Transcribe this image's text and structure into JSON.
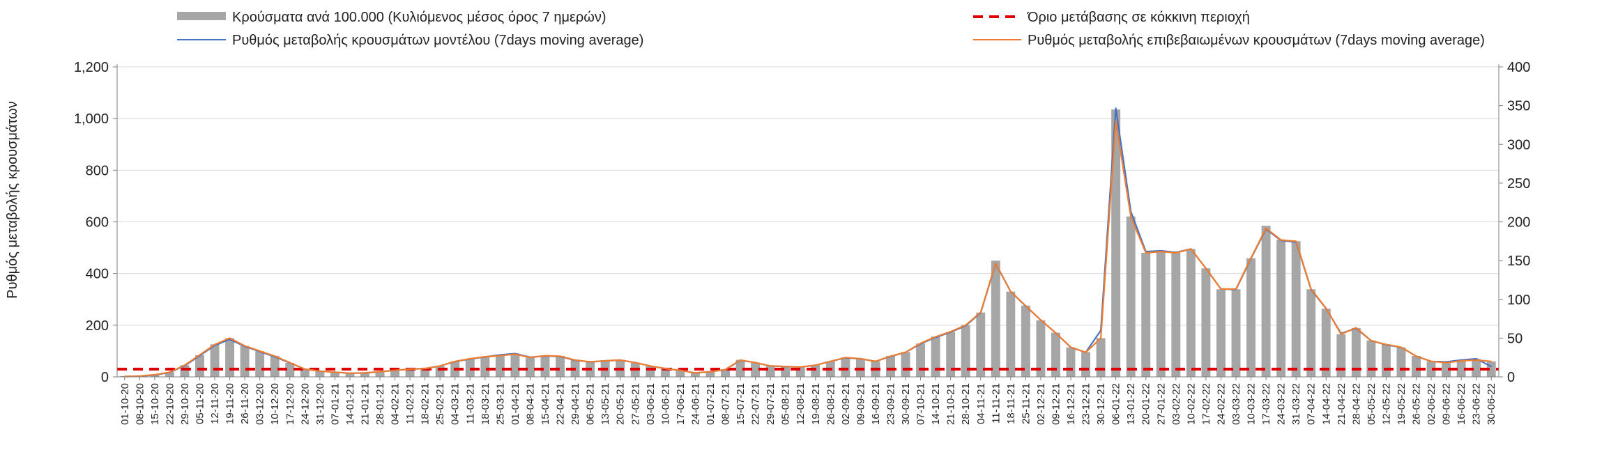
{
  "chart_data": {
    "type": "bar",
    "title": "",
    "ylabel": "Ρυθμός μεταβολής κρουσμάτων",
    "y2label": "",
    "ylim": [
      0,
      1200
    ],
    "y2lim": [
      0,
      400
    ],
    "y_ticks": [
      "0",
      "200",
      "400",
      "600",
      "800",
      "1,000",
      "1,200"
    ],
    "y2_ticks": [
      "0",
      "50",
      "100",
      "150",
      "200",
      "250",
      "300",
      "350",
      "400"
    ],
    "threshold_value": 30,
    "legend": {
      "bars": "Κρούσματα ανά 100.000 (Κυλιόμενος μέσος όρος 7 ημερών)",
      "threshold": "Όριο μετάβασης σε κόκκινη περιοχή",
      "model": "Ρυθμός μεταβολής κρουσμάτων μοντέλου (7days moving average)",
      "confirmed": "Ρυθμός μεταβολής επιβεβαιωμένων κρουσμάτων (7days moving average)"
    },
    "colors": {
      "bars": "#a6a6a6",
      "threshold": "#e00000",
      "model": "#4472c4",
      "confirmed": "#ed7d31",
      "grid": "#d9d9d9",
      "axis": "#7f7f7f"
    },
    "categories": [
      "01-10-20",
      "08-10-20",
      "15-10-20",
      "22-10-20",
      "29-10-20",
      "05-11-20",
      "12-11-20",
      "19-11-20",
      "26-11-20",
      "03-12-20",
      "10-12-20",
      "17-12-20",
      "24-12-20",
      "31-12-20",
      "07-01-21",
      "14-01-21",
      "21-01-21",
      "28-01-21",
      "04-02-21",
      "11-02-21",
      "18-02-21",
      "25-02-21",
      "04-03-21",
      "11-03-21",
      "18-03-21",
      "25-03-21",
      "01-04-21",
      "08-04-21",
      "15-04-21",
      "22-04-21",
      "29-04-21",
      "06-05-21",
      "13-05-21",
      "20-05-21",
      "27-05-21",
      "03-06-21",
      "10-06-21",
      "17-06-21",
      "24-06-21",
      "01-07-21",
      "08-07-21",
      "15-07-21",
      "22-07-21",
      "29-07-21",
      "05-08-21",
      "12-08-21",
      "19-08-21",
      "26-08-21",
      "02-09-21",
      "09-09-21",
      "16-09-21",
      "23-09-21",
      "30-09-21",
      "07-10-21",
      "14-10-21",
      "21-10-21",
      "28-10-21",
      "04-11-21",
      "11-11-21",
      "18-11-21",
      "25-11-21",
      "02-12-21",
      "09-12-21",
      "16-12-21",
      "23-12-21",
      "30-12-21",
      "06-01-22",
      "13-01-22",
      "20-01-22",
      "27-01-22",
      "03-02-22",
      "10-02-22",
      "17-02-22",
      "24-02-22",
      "03-03-22",
      "10-03-22",
      "17-03-22",
      "24-03-22",
      "31-03-22",
      "07-04-22",
      "14-04-22",
      "21-04-22",
      "28-04-22",
      "05-05-22",
      "12-05-22",
      "19-05-22",
      "26-05-22",
      "02-06-22",
      "09-06-22",
      "16-06-22",
      "23-06-22",
      "30-06-22"
    ],
    "series": [
      {
        "name": "Ρυθμός μεταβολής επιβεβαιωμένων κρουσμάτων (7days moving average)",
        "values": [
          2,
          3,
          8,
          18,
          45,
          85,
          125,
          150,
          120,
          100,
          80,
          55,
          30,
          22,
          18,
          14,
          15,
          20,
          25,
          30,
          32,
          42,
          60,
          70,
          78,
          82,
          88,
          75,
          82,
          80,
          65,
          58,
          62,
          65,
          55,
          42,
          32,
          25,
          15,
          20,
          28,
          65,
          55,
          42,
          40,
          38,
          45,
          60,
          75,
          70,
          60,
          80,
          95,
          130,
          155,
          175,
          200,
          250,
          440,
          330,
          275,
          220,
          170,
          115,
          95,
          150,
          990,
          620,
          480,
          485,
          480,
          495,
          420,
          340,
          340,
          460,
          575,
          530,
          525,
          340,
          265,
          165,
          190,
          140,
          125,
          115,
          80,
          60,
          55,
          62,
          65,
          60
        ]
      },
      {
        "name": "Ρυθμός μεταβολής κρουσμάτων μοντέλου (7days moving average)",
        "values": [
          1,
          3,
          7,
          17,
          43,
          82,
          122,
          145,
          118,
          98,
          78,
          54,
          30,
          22,
          18,
          14,
          15,
          20,
          25,
          30,
          32,
          42,
          59,
          69,
          77,
          85,
          90,
          76,
          81,
          79,
          64,
          58,
          62,
          65,
          55,
          42,
          32,
          25,
          15,
          20,
          28,
          64,
          55,
          42,
          40,
          38,
          45,
          60,
          74,
          70,
          60,
          79,
          95,
          128,
          153,
          173,
          198,
          248,
          438,
          330,
          274,
          220,
          170,
          114,
          95,
          180,
          1040,
          640,
          485,
          488,
          482,
          495,
          420,
          340,
          338,
          458,
          572,
          528,
          522,
          338,
          264,
          168,
          188,
          140,
          124,
          114,
          80,
          60,
          58,
          65,
          70,
          40
        ]
      }
    ],
    "bars_secondary_axis": [
      1,
      1,
      3,
      6,
      15,
      28,
      42,
      50,
      40,
      33,
      27,
      18,
      10,
      7,
      6,
      5,
      5,
      7,
      8,
      10,
      11,
      14,
      20,
      23,
      26,
      28,
      30,
      25,
      27,
      27,
      22,
      19,
      21,
      22,
      18,
      14,
      11,
      8,
      5,
      7,
      9,
      22,
      18,
      14,
      13,
      13,
      15,
      20,
      25,
      23,
      20,
      27,
      32,
      43,
      52,
      58,
      67,
      83,
      150,
      110,
      92,
      73,
      57,
      38,
      32,
      50,
      345,
      207,
      160,
      162,
      160,
      165,
      140,
      113,
      113,
      153,
      195,
      177,
      175,
      113,
      88,
      55,
      63,
      47,
      42,
      38,
      27,
      20,
      20,
      22,
      23,
      20
    ]
  }
}
